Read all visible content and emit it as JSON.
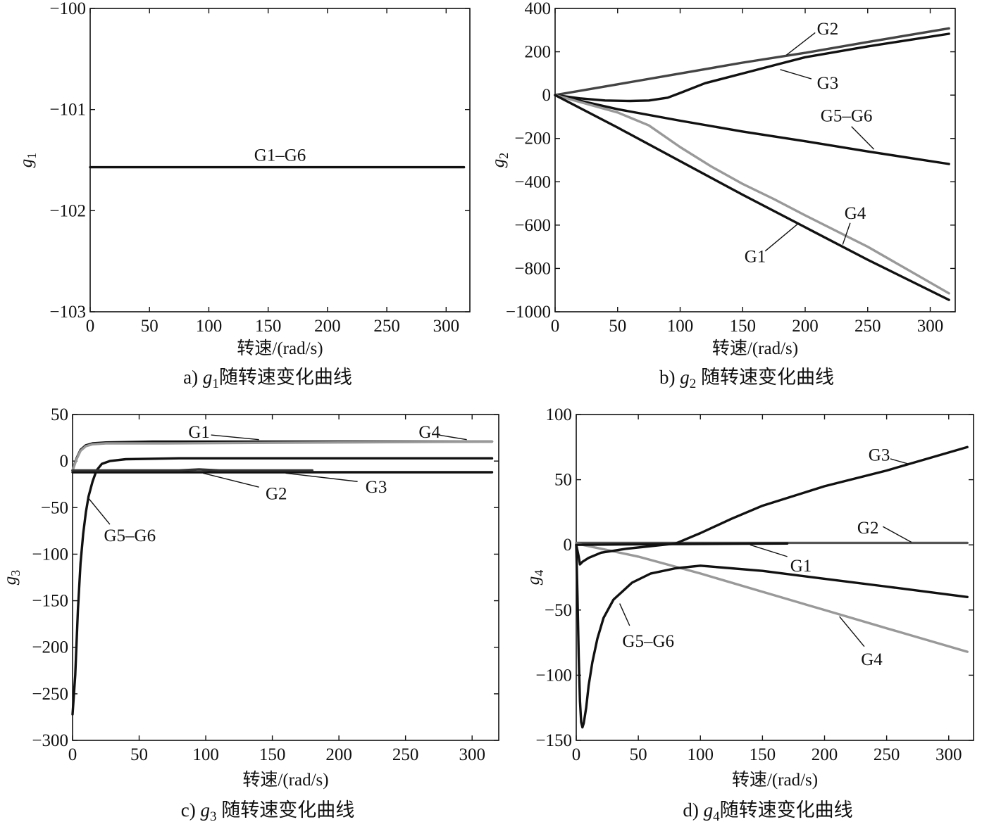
{
  "chart_data": [
    {
      "type": "line",
      "id": "a",
      "caption": {
        "prefix": "a) ",
        "var": "g",
        "sub": "1",
        "suffix": "随转速变化曲线"
      },
      "xlabel": "转速/(rad/s)",
      "ylabel": {
        "var": "g",
        "sub": "1"
      },
      "xlim": [
        0,
        320
      ],
      "ylim": [
        -103,
        -100
      ],
      "xticks": [
        0,
        50,
        100,
        150,
        200,
        250,
        300
      ],
      "yticks": [
        -100,
        -101,
        -102,
        -103
      ],
      "ytick_labels": [
        "−100",
        "−101",
        "−102",
        "−103"
      ],
      "series": [
        {
          "name": "G1–G6",
          "color": "#111111",
          "x": [
            0,
            315
          ],
          "y": [
            -101.57,
            -101.57
          ]
        }
      ],
      "labels": [
        {
          "text": "G1–G6",
          "x": 160,
          "y": -101.45,
          "anchor": "middle",
          "leader": null
        }
      ]
    },
    {
      "type": "line",
      "id": "b",
      "caption": {
        "prefix": "b) ",
        "var": "g",
        "sub": "2",
        "suffix": " 随转速变化曲线"
      },
      "xlabel": "转速/(rad/s)",
      "ylabel": {
        "var": "g",
        "sub": "2"
      },
      "xlim": [
        0,
        320
      ],
      "ylim": [
        -1000,
        400
      ],
      "xticks": [
        0,
        50,
        100,
        150,
        200,
        250,
        300
      ],
      "yticks": [
        400,
        200,
        0,
        -200,
        -400,
        -600,
        -800,
        -1000
      ],
      "ytick_labels": [
        "400",
        "200",
        "0",
        "−200",
        "−400",
        "−600",
        "−800",
        "−1000"
      ],
      "series": [
        {
          "name": "G2",
          "color": "#444444",
          "x": [
            0,
            50,
            100,
            150,
            200,
            250,
            315
          ],
          "y": [
            0,
            50,
            100,
            150,
            195,
            245,
            308
          ]
        },
        {
          "name": "G3",
          "color": "#111111",
          "x": [
            0,
            20,
            40,
            60,
            75,
            90,
            100,
            120,
            150,
            180,
            200,
            250,
            315
          ],
          "y": [
            0,
            -15,
            -25,
            -27,
            -25,
            -12,
            10,
            55,
            100,
            145,
            175,
            225,
            283
          ]
        },
        {
          "name": "G5–G6",
          "color": "#111111",
          "x": [
            0,
            50,
            100,
            150,
            200,
            250,
            315
          ],
          "y": [
            0,
            -65,
            -118,
            -168,
            -213,
            -260,
            -318
          ]
        },
        {
          "name": "G4",
          "color": "#999999",
          "x": [
            0,
            25,
            50,
            75,
            100,
            125,
            150,
            175,
            200,
            250,
            315
          ],
          "y": [
            0,
            -40,
            -80,
            -140,
            -240,
            -330,
            -410,
            -480,
            -555,
            -700,
            -915
          ]
        },
        {
          "name": "G1",
          "color": "#111111",
          "x": [
            0,
            50,
            100,
            150,
            200,
            250,
            315
          ],
          "y": [
            0,
            -150,
            -305,
            -460,
            -610,
            -760,
            -945
          ]
        }
      ],
      "labels": [
        {
          "text": "G2",
          "x": 218,
          "y": 305,
          "anchor": "middle",
          "leader": [
            [
              208,
              288
            ],
            [
              185,
              185
            ]
          ]
        },
        {
          "text": "G3",
          "x": 218,
          "y": 55,
          "anchor": "middle",
          "leader": [
            [
              205,
              75
            ],
            [
              180,
              118
            ]
          ]
        },
        {
          "text": "G5–G6",
          "x": 233,
          "y": -95,
          "anchor": "middle",
          "leader": [
            [
              237,
              -145
            ],
            [
              255,
              -250
            ]
          ]
        },
        {
          "text": "G4",
          "x": 240,
          "y": -545,
          "anchor": "middle",
          "leader": [
            [
              236,
              -590
            ],
            [
              230,
              -690
            ]
          ]
        },
        {
          "text": "G1",
          "x": 160,
          "y": -745,
          "anchor": "middle",
          "leader": [
            [
              168,
              -720
            ],
            [
              195,
              -590
            ]
          ]
        }
      ]
    },
    {
      "type": "line",
      "id": "c",
      "caption": {
        "prefix": "c) ",
        "var": "g",
        "sub": "3",
        "suffix": " 随转速变化曲线"
      },
      "xlabel": "转速/(rad/s)",
      "ylabel": {
        "var": "g",
        "sub": "3"
      },
      "xlim": [
        0,
        320
      ],
      "ylim": [
        -300,
        50
      ],
      "xticks": [
        0,
        50,
        100,
        150,
        200,
        250,
        300
      ],
      "yticks": [
        50,
        0,
        -50,
        -100,
        -150,
        -200,
        -250,
        -300
      ],
      "ytick_labels": [
        "50",
        "0",
        "−50",
        "−100",
        "−150",
        "−200",
        "−250",
        "−300"
      ],
      "series": [
        {
          "name": "G1",
          "color": "#111111",
          "x": [
            0,
            3,
            6,
            10,
            15,
            25,
            60,
            150,
            315
          ],
          "y": [
            -10,
            3,
            12,
            17,
            19,
            20,
            21,
            21,
            21
          ]
        },
        {
          "name": "G4",
          "color": "#999999",
          "x": [
            0,
            3,
            6,
            10,
            15,
            25,
            70,
            200,
            315
          ],
          "y": [
            -10,
            2,
            11,
            16,
            18,
            19,
            19,
            20,
            21
          ]
        },
        {
          "name": "G5–G6",
          "color": "#111111",
          "x": [
            0,
            2,
            4,
            6,
            8,
            10,
            12,
            15,
            18,
            22,
            28,
            40,
            80,
            315
          ],
          "y": [
            -272,
            -230,
            -160,
            -110,
            -78,
            -55,
            -38,
            -22,
            -10,
            -3,
            0,
            2,
            3,
            3
          ]
        },
        {
          "name": "G3",
          "color": "#111111",
          "x": [
            0,
            315
          ],
          "y": [
            -12,
            -12
          ]
        },
        {
          "name": "G2",
          "color": "#333333",
          "x": [
            0,
            80,
            95,
            110,
            180
          ],
          "y": [
            -10,
            -10,
            -9,
            -10,
            -10
          ]
        }
      ],
      "labels": [
        {
          "text": "G1",
          "x": 95,
          "y": 31,
          "anchor": "middle",
          "leader": [
            [
              104,
              28
            ],
            [
              140,
              23
            ]
          ]
        },
        {
          "text": "G4",
          "x": 268,
          "y": 31,
          "anchor": "middle",
          "leader": [
            [
              275,
              28
            ],
            [
              296,
              23
            ]
          ]
        },
        {
          "text": "G2",
          "x": 153,
          "y": -35,
          "anchor": "middle",
          "leader": [
            [
              140,
              -28
            ],
            [
              98,
              -13
            ]
          ]
        },
        {
          "text": "G3",
          "x": 228,
          "y": -28,
          "anchor": "middle",
          "leader": [
            [
              214,
              -22
            ],
            [
              160,
              -13
            ]
          ]
        },
        {
          "text": "G5–G6",
          "x": 43,
          "y": -80,
          "anchor": "middle",
          "leader": [
            [
              28,
              -68
            ],
            [
              12,
              -40
            ]
          ]
        }
      ]
    },
    {
      "type": "line",
      "id": "d",
      "caption": {
        "prefix": "d) ",
        "var": "g",
        "sub": "4",
        "suffix": "随转速变化曲线"
      },
      "xlabel": "转速/(rad/s)",
      "ylabel": {
        "var": "g",
        "sub": "4"
      },
      "xlim": [
        0,
        320
      ],
      "ylim": [
        -150,
        100
      ],
      "xticks": [
        0,
        50,
        100,
        150,
        200,
        250,
        300
      ],
      "yticks": [
        100,
        50,
        0,
        -50,
        -100,
        -150
      ],
      "ytick_labels": [
        "100",
        "50",
        "0",
        "−50",
        "−100",
        "−150"
      ],
      "series": [
        {
          "name": "G2",
          "color": "#555555",
          "x": [
            0,
            315
          ],
          "y": [
            1.5,
            1.5
          ]
        },
        {
          "name": "G4",
          "color": "#999999",
          "x": [
            0,
            50,
            100,
            150,
            200,
            250,
            315
          ],
          "y": [
            1,
            -9,
            -22,
            -36,
            -50,
            -64,
            -82
          ]
        },
        {
          "name": "G3",
          "color": "#111111",
          "x": [
            0,
            2,
            3,
            5,
            10,
            20,
            40,
            60,
            80,
            100,
            125,
            150,
            200,
            250,
            315
          ],
          "y": [
            0,
            -9,
            -15,
            -13,
            -10,
            -6,
            -3,
            -1,
            1,
            9,
            20,
            30,
            45,
            57,
            75
          ]
        },
        {
          "name": "G1",
          "color": "#111111",
          "x": [
            0,
            60,
            170
          ],
          "y": [
            0,
            0.5,
            1
          ]
        },
        {
          "name": "G5–G6",
          "color": "#111111",
          "x": [
            0,
            1,
            2,
            3,
            4,
            5,
            6,
            8,
            10,
            13,
            17,
            22,
            30,
            45,
            60,
            80,
            100,
            150,
            200,
            250,
            315
          ],
          "y": [
            0,
            -40,
            -85,
            -120,
            -136,
            -140,
            -137,
            -125,
            -108,
            -90,
            -72,
            -56,
            -42,
            -29,
            -22,
            -18,
            -16,
            -20,
            -26,
            -32,
            -40
          ]
        }
      ],
      "labels": [
        {
          "text": "G3",
          "x": 244,
          "y": 69,
          "anchor": "middle",
          "leader": [
            [
              253,
              66
            ],
            [
              268,
              62
            ]
          ]
        },
        {
          "text": "G2",
          "x": 235,
          "y": 13,
          "anchor": "middle",
          "leader": [
            [
              247,
              14
            ],
            [
              270,
              2
            ]
          ]
        },
        {
          "text": "G1",
          "x": 181,
          "y": -16,
          "anchor": "middle",
          "leader": [
            [
              170,
              -9
            ],
            [
              140,
              0
            ]
          ]
        },
        {
          "text": "G5–G6",
          "x": 58,
          "y": -74,
          "anchor": "middle",
          "leader": [
            [
              43,
              -62
            ],
            [
              35,
              -45
            ]
          ]
        },
        {
          "text": "G4",
          "x": 238,
          "y": -88,
          "anchor": "middle",
          "leader": [
            [
              232,
              -78
            ],
            [
              212,
              -55
            ]
          ]
        }
      ]
    }
  ]
}
